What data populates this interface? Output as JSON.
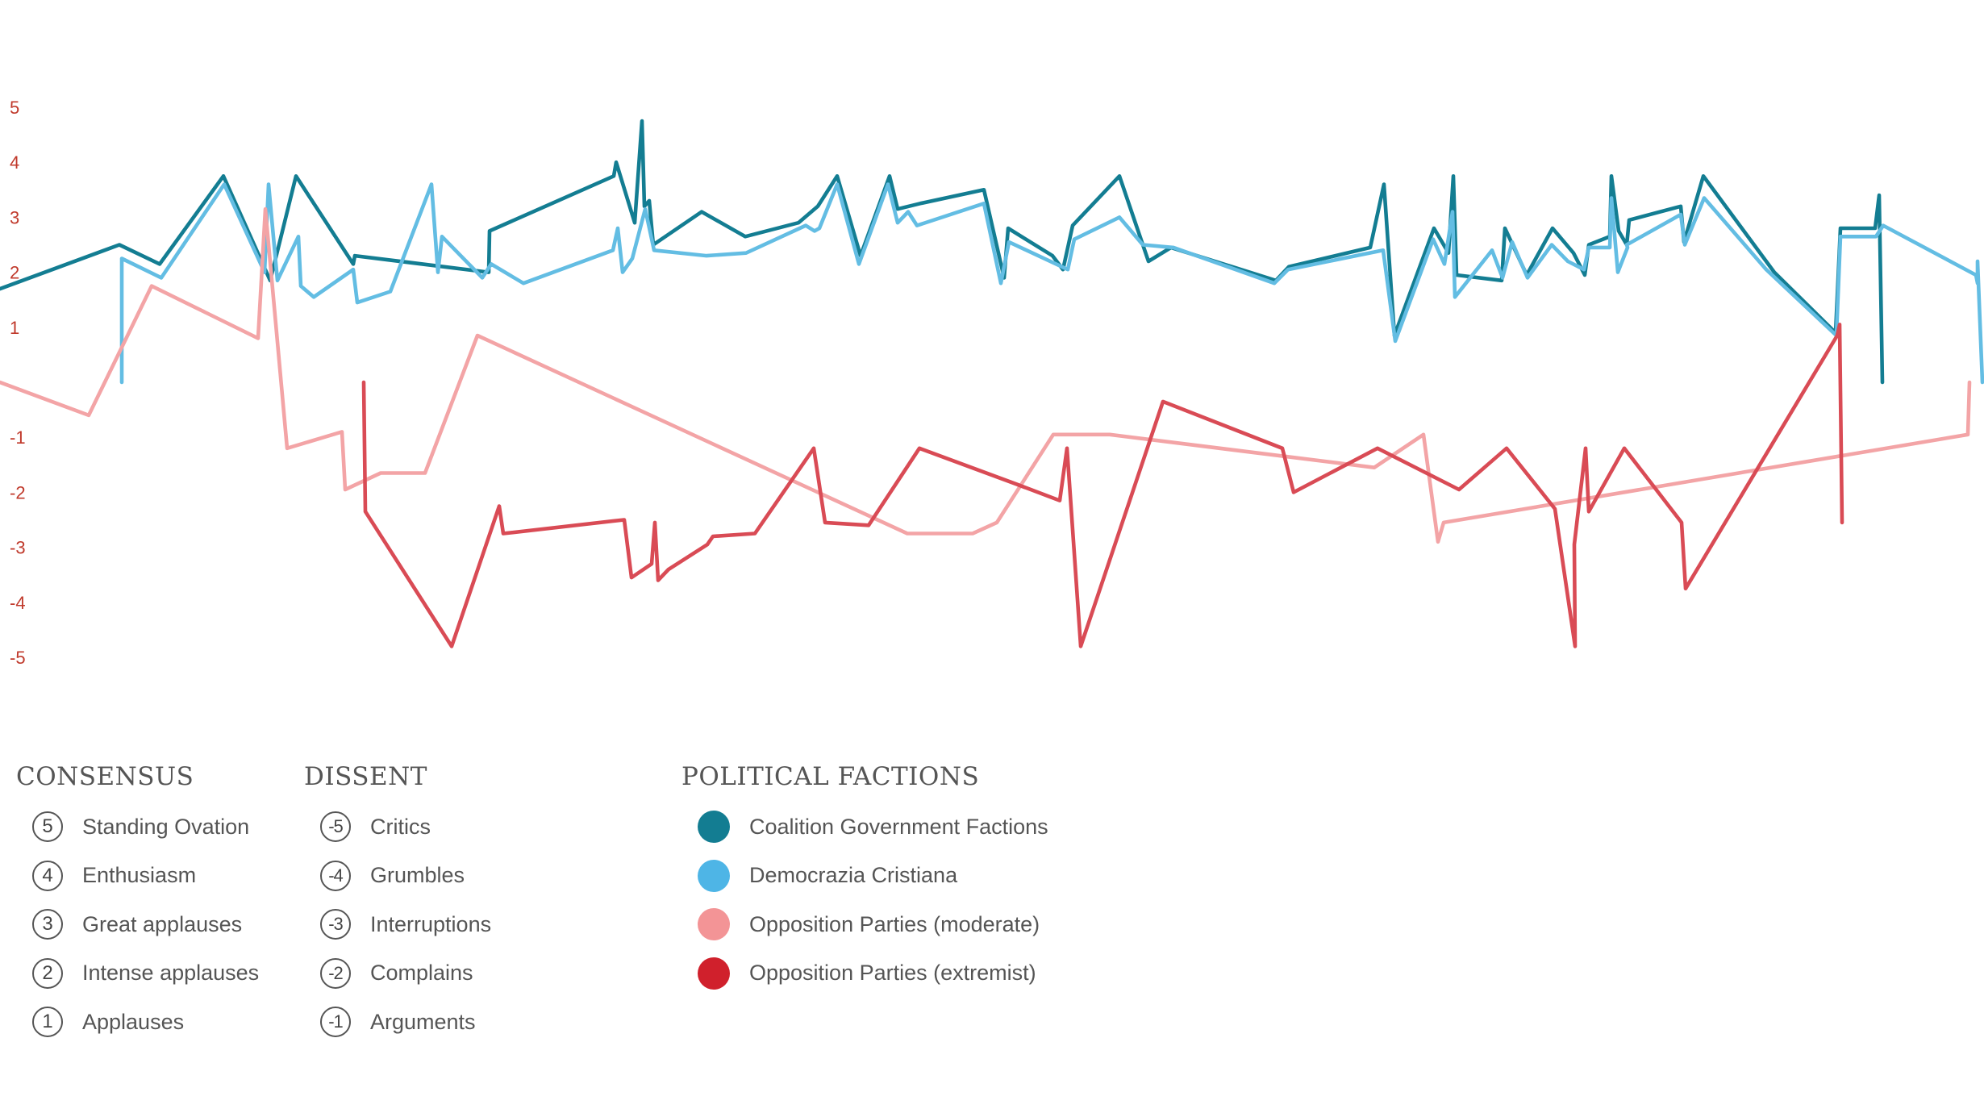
{
  "chart_data": {
    "type": "line",
    "ylim": [
      -5,
      5
    ],
    "yticks": [
      "5",
      "4",
      "3",
      "2",
      "1",
      "-1",
      "-2",
      "-3",
      "-4",
      "-5"
    ],
    "xlim": [
      0,
      2460
    ],
    "colors": {
      "coalition": "#137d92",
      "dc": "#63bde3",
      "moderate": "#f3a4a6",
      "extremist": "#d94b55"
    },
    "series": [
      {
        "key": "coalition",
        "points": [
          [
            0,
            1.7
          ],
          [
            148,
            2.5
          ],
          [
            198,
            2.15
          ],
          [
            277,
            3.75
          ],
          [
            335,
            1.85
          ],
          [
            367,
            3.75
          ],
          [
            438,
            2.15
          ],
          [
            440,
            2.3
          ],
          [
            606,
            2.0
          ],
          [
            607,
            2.75
          ],
          [
            761,
            3.75
          ],
          [
            764,
            4.0
          ],
          [
            787,
            2.9
          ],
          [
            796,
            4.75
          ],
          [
            799,
            3.2
          ],
          [
            805,
            3.3
          ],
          [
            810,
            2.5
          ],
          [
            870,
            3.1
          ],
          [
            924,
            2.65
          ],
          [
            990,
            2.9
          ],
          [
            1014,
            3.2
          ],
          [
            1038,
            3.75
          ],
          [
            1067,
            2.3
          ],
          [
            1103,
            3.75
          ],
          [
            1113,
            3.15
          ],
          [
            1141,
            3.25
          ],
          [
            1220,
            3.5
          ],
          [
            1245,
            1.9
          ],
          [
            1250,
            2.8
          ],
          [
            1305,
            2.3
          ],
          [
            1318,
            2.05
          ],
          [
            1330,
            2.85
          ],
          [
            1388,
            3.75
          ],
          [
            1424,
            2.2
          ],
          [
            1452,
            2.45
          ],
          [
            1582,
            1.85
          ],
          [
            1598,
            2.1
          ],
          [
            1699,
            2.45
          ],
          [
            1716,
            3.6
          ],
          [
            1729,
            0.85
          ],
          [
            1778,
            2.8
          ],
          [
            1796,
            2.35
          ],
          [
            1802,
            3.75
          ],
          [
            1806,
            1.95
          ],
          [
            1862,
            1.85
          ],
          [
            1866,
            2.8
          ],
          [
            1893,
            1.95
          ],
          [
            1925,
            2.8
          ],
          [
            1951,
            2.35
          ],
          [
            1965,
            1.95
          ],
          [
            1970,
            2.5
          ],
          [
            1996,
            2.65
          ],
          [
            1998,
            3.75
          ],
          [
            2007,
            2.75
          ],
          [
            2017,
            2.5
          ],
          [
            2020,
            2.95
          ],
          [
            2084,
            3.2
          ],
          [
            2088,
            2.55
          ],
          [
            2112,
            3.75
          ],
          [
            2200,
            2.0
          ],
          [
            2276,
            0.9
          ],
          [
            2282,
            2.8
          ],
          [
            2325,
            2.8
          ],
          [
            2330,
            3.4
          ],
          [
            2334,
            0.0
          ]
        ]
      },
      {
        "key": "dc",
        "points": [
          [
            151,
            0.0
          ],
          [
            151,
            2.25
          ],
          [
            200,
            1.9
          ],
          [
            278,
            3.6
          ],
          [
            328,
            2.0
          ],
          [
            333,
            3.6
          ],
          [
            344,
            1.85
          ],
          [
            370,
            2.65
          ],
          [
            373,
            1.75
          ],
          [
            389,
            1.55
          ],
          [
            438,
            2.05
          ],
          [
            443,
            1.45
          ],
          [
            484,
            1.65
          ],
          [
            535,
            3.6
          ],
          [
            543,
            2.0
          ],
          [
            548,
            2.65
          ],
          [
            598,
            1.9
          ],
          [
            609,
            2.15
          ],
          [
            649,
            1.8
          ],
          [
            760,
            2.4
          ],
          [
            766,
            2.8
          ],
          [
            772,
            2.0
          ],
          [
            784,
            2.25
          ],
          [
            800,
            3.15
          ],
          [
            811,
            2.4
          ],
          [
            876,
            2.3
          ],
          [
            925,
            2.35
          ],
          [
            999,
            2.85
          ],
          [
            1010,
            2.75
          ],
          [
            1016,
            2.8
          ],
          [
            1038,
            3.6
          ],
          [
            1065,
            2.15
          ],
          [
            1101,
            3.6
          ],
          [
            1113,
            2.9
          ],
          [
            1126,
            3.1
          ],
          [
            1137,
            2.85
          ],
          [
            1220,
            3.25
          ],
          [
            1241,
            1.8
          ],
          [
            1251,
            2.55
          ],
          [
            1324,
            2.05
          ],
          [
            1332,
            2.6
          ],
          [
            1388,
            3.0
          ],
          [
            1417,
            2.5
          ],
          [
            1455,
            2.45
          ],
          [
            1580,
            1.8
          ],
          [
            1597,
            2.05
          ],
          [
            1715,
            2.4
          ],
          [
            1730,
            0.75
          ],
          [
            1777,
            2.6
          ],
          [
            1791,
            2.15
          ],
          [
            1801,
            3.1
          ],
          [
            1804,
            1.55
          ],
          [
            1850,
            2.4
          ],
          [
            1863,
            1.9
          ],
          [
            1875,
            2.55
          ],
          [
            1894,
            1.9
          ],
          [
            1924,
            2.5
          ],
          [
            1944,
            2.2
          ],
          [
            1964,
            2.05
          ],
          [
            1970,
            2.45
          ],
          [
            1996,
            2.45
          ],
          [
            1998,
            3.35
          ],
          [
            2006,
            2.0
          ],
          [
            2018,
            2.45
          ],
          [
            2017,
            2.5
          ],
          [
            2084,
            3.05
          ],
          [
            2089,
            2.5
          ],
          [
            2113,
            3.35
          ],
          [
            2190,
            2.05
          ],
          [
            2277,
            0.85
          ],
          [
            2282,
            2.65
          ],
          [
            2326,
            2.65
          ],
          [
            2335,
            2.85
          ],
          [
            2450,
            1.95
          ],
          [
            2452,
            1.8
          ],
          [
            2452,
            2.2
          ],
          [
            2458,
            0.0
          ]
        ]
      },
      {
        "key": "moderate",
        "points": [
          [
            0,
            0.0
          ],
          [
            110,
            -0.6
          ],
          [
            188,
            1.75
          ],
          [
            320,
            0.8
          ],
          [
            329,
            3.15
          ],
          [
            356,
            -1.2
          ],
          [
            424,
            -0.9
          ],
          [
            428,
            -1.95
          ],
          [
            472,
            -1.65
          ],
          [
            527,
            -1.65
          ],
          [
            592,
            0.85
          ],
          [
            1125,
            -2.75
          ],
          [
            1206,
            -2.75
          ],
          [
            1236,
            -2.55
          ],
          [
            1306,
            -0.95
          ],
          [
            1376,
            -0.95
          ],
          [
            1704,
            -1.55
          ],
          [
            1765,
            -0.95
          ],
          [
            1783,
            -2.9
          ],
          [
            1790,
            -2.55
          ],
          [
            2440,
            -0.95
          ],
          [
            2442,
            0.0
          ]
        ]
      },
      {
        "key": "extremist",
        "points": [
          [
            451,
            0.0
          ],
          [
            453,
            -2.35
          ],
          [
            560,
            -4.8
          ],
          [
            619,
            -2.25
          ],
          [
            624,
            -2.75
          ],
          [
            774,
            -2.5
          ],
          [
            783,
            -3.55
          ],
          [
            808,
            -3.3
          ],
          [
            812,
            -2.55
          ],
          [
            816,
            -3.6
          ],
          [
            829,
            -3.4
          ],
          [
            877,
            -2.95
          ],
          [
            884,
            -2.8
          ],
          [
            936,
            -2.75
          ],
          [
            1009,
            -1.2
          ],
          [
            1023,
            -2.55
          ],
          [
            1077,
            -2.6
          ],
          [
            1140,
            -1.2
          ],
          [
            1260,
            -1.85
          ],
          [
            1314,
            -2.15
          ],
          [
            1323,
            -1.2
          ],
          [
            1340,
            -4.8
          ],
          [
            1442,
            -0.35
          ],
          [
            1590,
            -1.2
          ],
          [
            1604,
            -2.0
          ],
          [
            1708,
            -1.2
          ],
          [
            1809,
            -1.95
          ],
          [
            1868,
            -1.2
          ],
          [
            1928,
            -2.3
          ],
          [
            1953,
            -4.8
          ],
          [
            1952,
            -2.95
          ],
          [
            1966,
            -1.2
          ],
          [
            1970,
            -2.35
          ],
          [
            2014,
            -1.2
          ],
          [
            2085,
            -2.55
          ],
          [
            2090,
            -3.75
          ],
          [
            2278,
            0.85
          ],
          [
            2281,
            1.05
          ],
          [
            2284,
            -2.55
          ]
        ]
      }
    ]
  },
  "legend": {
    "consensus": {
      "title": "CONSENSUS",
      "items": [
        {
          "num": "5",
          "label": "Standing Ovation"
        },
        {
          "num": "4",
          "label": "Enthusiasm"
        },
        {
          "num": "3",
          "label": "Great applauses"
        },
        {
          "num": "2",
          "label": "Intense applauses"
        },
        {
          "num": "1",
          "label": "Applauses"
        }
      ]
    },
    "dissent": {
      "title": "DISSENT",
      "items": [
        {
          "num": "-5",
          "label": "Critics"
        },
        {
          "num": "-4",
          "label": "Grumbles"
        },
        {
          "num": "-3",
          "label": "Interruptions"
        },
        {
          "num": "-2",
          "label": "Complains"
        },
        {
          "num": "-1",
          "label": "Arguments"
        }
      ]
    },
    "factions": {
      "title": "POLITICAL FACTIONS",
      "items": [
        {
          "label": "Coalition Government Factions",
          "color": "#137d92"
        },
        {
          "label": "Democrazia Cristiana",
          "color": "#4eb5e6"
        },
        {
          "label": "Opposition Parties (moderate)",
          "color": "#f39496"
        },
        {
          "label": "Opposition Parties (extremist)",
          "color": "#d0202c"
        }
      ]
    }
  }
}
